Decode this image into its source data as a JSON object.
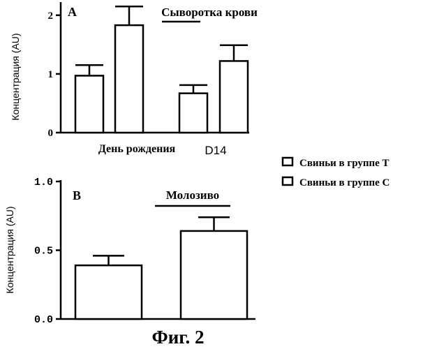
{
  "figure_caption": "Фиг. 2",
  "legend": [
    {
      "label": "Свиньи в группе T"
    },
    {
      "label": "Свиньи в группе C"
    }
  ],
  "chart_data": [
    {
      "type": "bar",
      "panel_label": "A",
      "title": "Сыворотка крови",
      "ylabel": "Концентрация (AU)",
      "ylim": [
        0,
        2.2
      ],
      "yticks": [
        "0",
        "1",
        "2"
      ],
      "ytick_values": [
        0,
        1,
        2
      ],
      "groups": [
        "День рождения",
        "D14"
      ],
      "series": [
        {
          "values": [
            0.97,
            0.67
          ],
          "errors": [
            0.18,
            0.14
          ]
        },
        {
          "values": [
            1.83,
            1.22
          ],
          "errors": [
            0.32,
            0.27
          ]
        }
      ]
    },
    {
      "type": "bar",
      "panel_label": "B",
      "title": "Молозиво",
      "ylabel": "Концентрация (AU)",
      "ylim": [
        0,
        1.0
      ],
      "yticks": [
        "0.0",
        "0.5",
        "1.0"
      ],
      "ytick_values": [
        0,
        0.5,
        1.0
      ],
      "groups": [],
      "series": [
        {
          "values": [
            0.39
          ],
          "errors": [
            0.07
          ]
        },
        {
          "values": [
            0.64
          ],
          "errors": [
            0.1
          ]
        }
      ]
    }
  ]
}
